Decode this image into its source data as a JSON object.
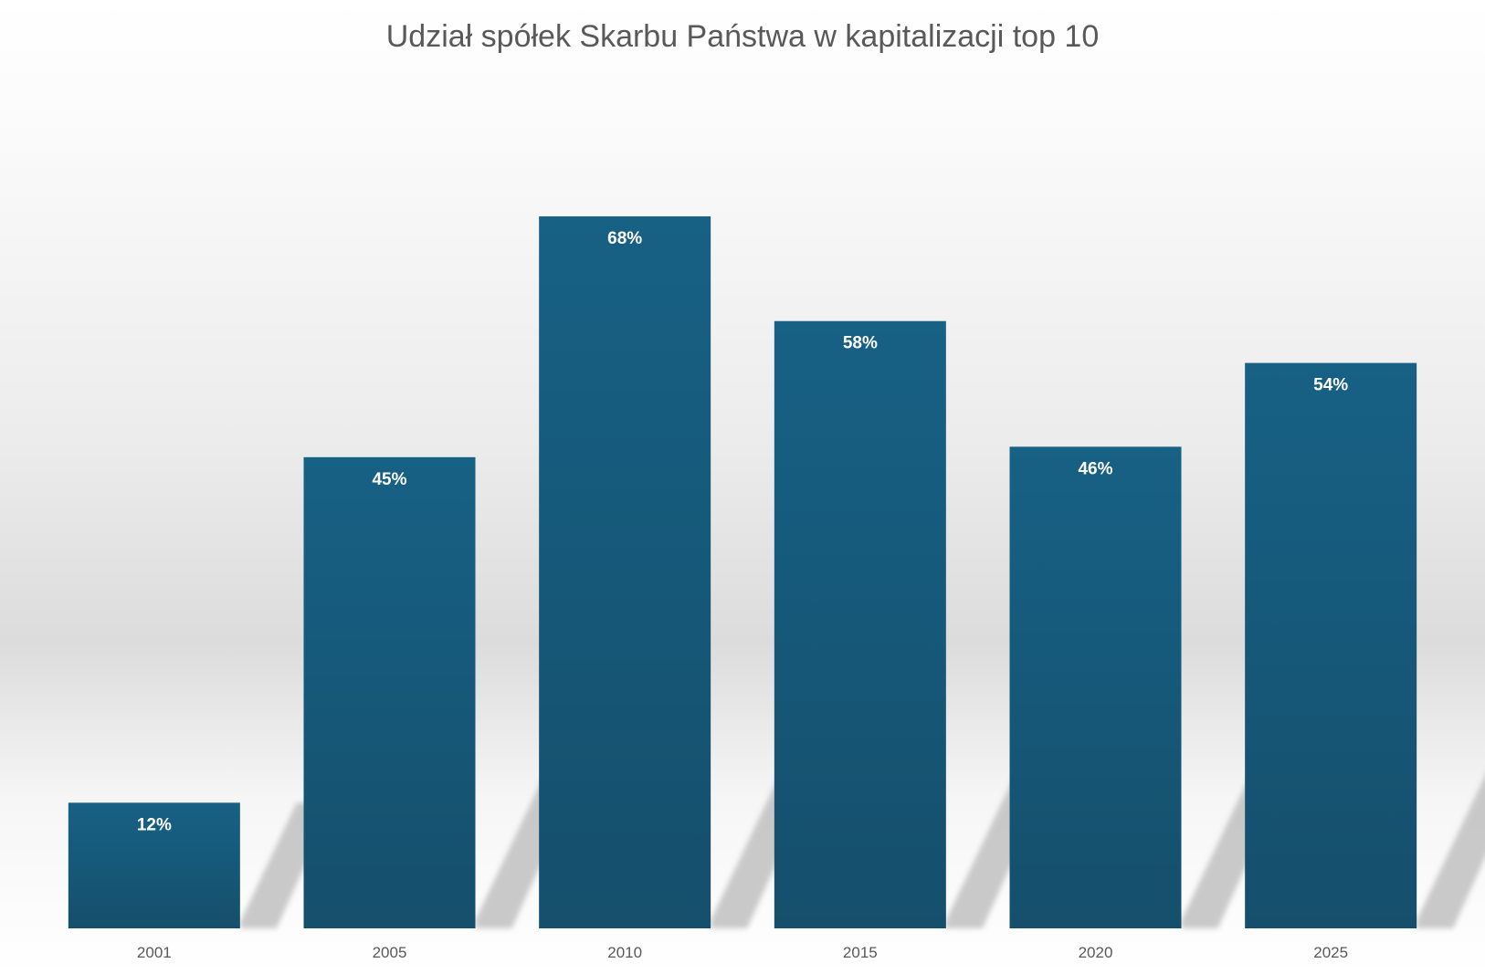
{
  "chart_data": {
    "type": "bar",
    "title": "Udział spółek Skarbu Państwa w kapitalizacji top 10",
    "xlabel": "",
    "ylabel": "",
    "categories": [
      "2001",
      "2005",
      "2010",
      "2015",
      "2020",
      "2025"
    ],
    "values": [
      12,
      45,
      68,
      58,
      46,
      54
    ],
    "value_labels": [
      "12%",
      "45%",
      "68%",
      "58%",
      "46%",
      "54%"
    ],
    "ylim": [
      0,
      80
    ],
    "grid": false,
    "legend": "none",
    "colors": {
      "bar_top": "#176185",
      "bar_bottom": "#154f6c",
      "text": "#595959",
      "background_band": "#dcdcdc",
      "shadow": "#c4c4c4"
    }
  }
}
